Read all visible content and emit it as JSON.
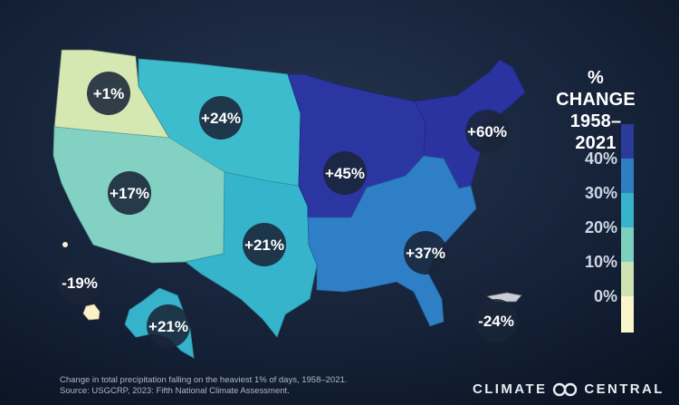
{
  "legend": {
    "title_line1": "% CHANGE",
    "title_line2": "1958–2021",
    "ticks": [
      "40%",
      "30%",
      "20%",
      "10%",
      "0%"
    ],
    "colors": [
      "#2b3a9b",
      "#2f7ec4",
      "#37b3cb",
      "#7ecfc0",
      "#cde3b4",
      "#fbf5cc"
    ]
  },
  "regions": [
    {
      "id": "northwest",
      "label": "+1%",
      "color": "#d6e8b2"
    },
    {
      "id": "northern-great-plains",
      "label": "+24%",
      "color": "#3cbccc"
    },
    {
      "id": "southwest",
      "label": "+17%",
      "color": "#82d1c3"
    },
    {
      "id": "southern-great-plains",
      "label": "+21%",
      "color": "#35b4cc"
    },
    {
      "id": "midwest",
      "label": "+45%",
      "color": "#2c36a2"
    },
    {
      "id": "northeast",
      "label": "+60%",
      "color": "#2a33a0"
    },
    {
      "id": "southeast",
      "label": "+37%",
      "color": "#2f7fc6"
    },
    {
      "id": "hawaii",
      "label": "-19%",
      "color": "#fbf3c7"
    },
    {
      "id": "alaska",
      "label": "+21%",
      "color": "#36b2cb"
    },
    {
      "id": "puerto-rico",
      "label": "-24%",
      "color": "#c9cfd6"
    }
  ],
  "footer": {
    "line1": "Change in total precipitation falling on the heaviest 1% of days, 1958–2021.",
    "line2": "Source: USGCRP, 2023: Fifth National Climate Assessment."
  },
  "brand": {
    "left": "CLIMATE",
    "right": "CENTRAL"
  }
}
